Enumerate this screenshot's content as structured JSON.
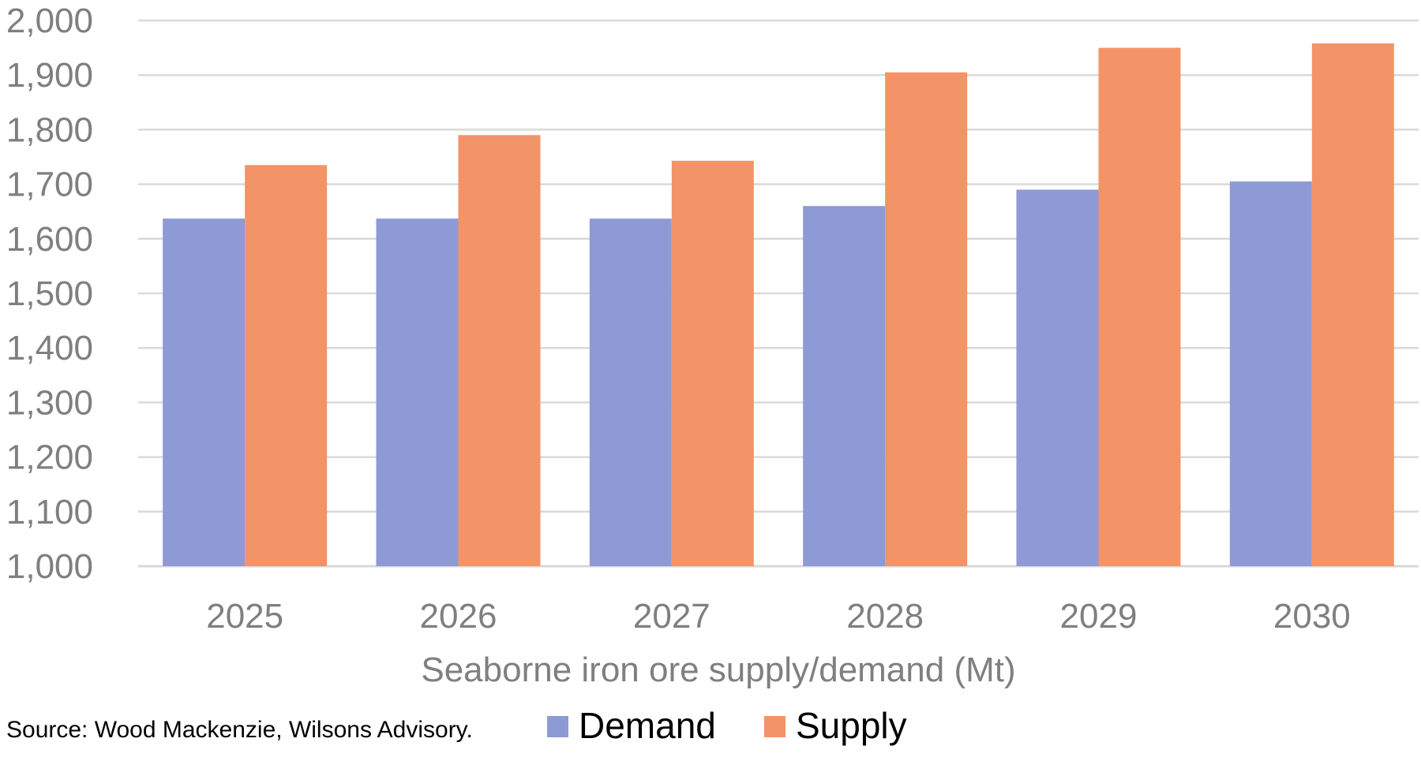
{
  "chart_data": {
    "type": "bar",
    "categories": [
      "2025",
      "2026",
      "2027",
      "2028",
      "2029",
      "2030"
    ],
    "series": [
      {
        "name": "Demand",
        "color": "#8e9ad6",
        "values": [
          1637,
          1637,
          1637,
          1660,
          1690,
          1705
        ]
      },
      {
        "name": "Supply",
        "color": "#f29467",
        "values": [
          1735,
          1790,
          1743,
          1905,
          1950,
          1958
        ]
      }
    ],
    "ylim": [
      1000,
      2000
    ],
    "yticks": [
      "1,000",
      "1,100",
      "1,200",
      "1,300",
      "1,400",
      "1,500",
      "1,600",
      "1,700",
      "1,800",
      "1,900",
      "2,000"
    ],
    "ytick_values": [
      1000,
      1100,
      1200,
      1300,
      1400,
      1500,
      1600,
      1700,
      1800,
      1900,
      2000
    ],
    "xlabel": "Seaborne iron ore supply/demand (Mt)",
    "grid": true,
    "legend_position": "bottom",
    "gridline_color": "#d9d9d9"
  },
  "source_note": "Source: Wood Mackenzie, Wilsons Advisory."
}
